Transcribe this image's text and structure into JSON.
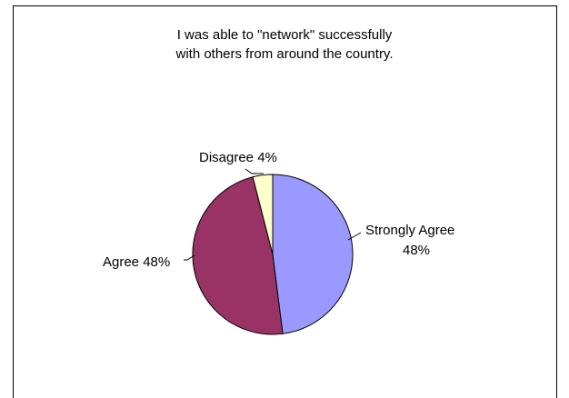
{
  "chart_data": {
    "type": "pie",
    "title_lines": [
      "I was able to \"network\" successfully",
      "with others from around the country."
    ],
    "slices": [
      {
        "label": "Strongly Agree",
        "percent_text": "48%",
        "value": 48,
        "color": "#9999ff"
      },
      {
        "label": "Agree",
        "percent_text": "48%",
        "value": 48,
        "color": "#993366"
      },
      {
        "label": "Disagree",
        "percent_text": "4%",
        "value": 4,
        "color": "#ffffcc"
      }
    ],
    "legend": "none",
    "data_labels": "outside with leader lines"
  }
}
